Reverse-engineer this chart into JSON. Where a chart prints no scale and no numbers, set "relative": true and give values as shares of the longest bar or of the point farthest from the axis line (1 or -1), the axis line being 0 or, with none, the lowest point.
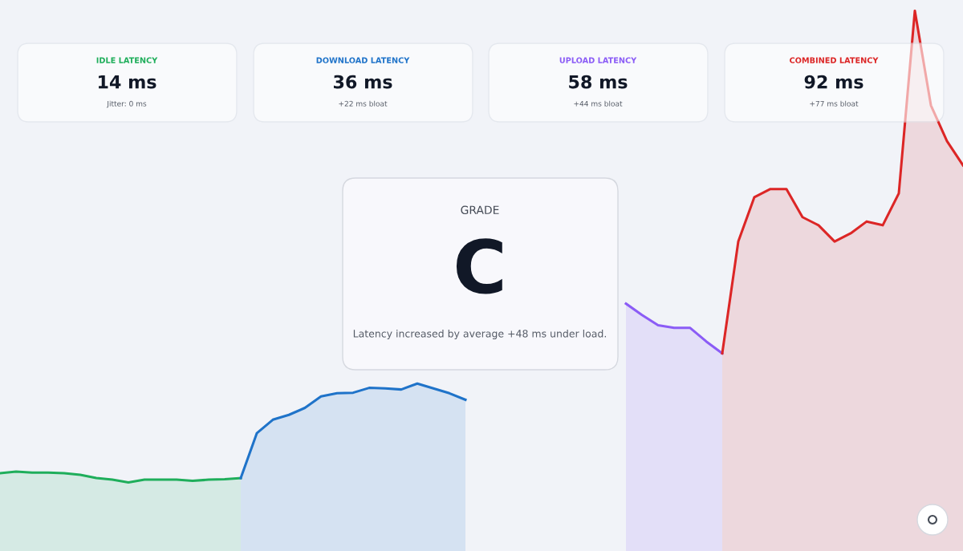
{
  "chart_data": [
    {
      "type": "area",
      "relative": true,
      "categories": [
        null,
        null,
        null,
        null,
        null,
        null,
        null,
        null,
        null,
        null,
        null,
        null,
        null,
        null,
        null,
        null,
        null,
        null,
        null,
        null,
        null,
        null,
        null,
        null,
        null,
        null,
        null,
        null,
        null,
        null,
        null,
        null,
        null,
        null,
        null,
        null,
        null,
        null,
        null,
        null,
        null,
        null,
        null,
        null,
        null,
        null,
        null,
        null,
        null,
        null,
        null,
        null,
        null,
        null,
        null,
        null,
        null,
        null,
        null,
        null,
        null
      ],
      "marker": "none",
      "line_style": "solid",
      "series": [
        {
          "color": "#1fae5b",
          "values": [
            0.144,
            0.147,
            0.145,
            0.145,
            0.144,
            0.141,
            0.135,
            0.132,
            0.127,
            0.132,
            0.132,
            0.132,
            0.13,
            0.132,
            0.133,
            0.135,
            null,
            null,
            null,
            null,
            null,
            null,
            null,
            null,
            null,
            null,
            null,
            null,
            null,
            null,
            null,
            null,
            null,
            null,
            null,
            null,
            null,
            null,
            null,
            null,
            null,
            null,
            null,
            null,
            null,
            null,
            null,
            null,
            null,
            null,
            null,
            null,
            null,
            null,
            null,
            null,
            null,
            null,
            null,
            null,
            null
          ]
        },
        {
          "color": "#1f73c9",
          "values": [
            null,
            null,
            null,
            null,
            null,
            null,
            null,
            null,
            null,
            null,
            null,
            null,
            null,
            null,
            null,
            0.135,
            0.218,
            0.243,
            0.252,
            0.265,
            0.286,
            0.292,
            0.293,
            0.302,
            0.301,
            0.299,
            0.31,
            0.301,
            0.292,
            0.28,
            null,
            null,
            null,
            null,
            null,
            null,
            null,
            null,
            null,
            null,
            null,
            null,
            null,
            null,
            null,
            null,
            null,
            null,
            null,
            null,
            null,
            null,
            null,
            null,
            null,
            null,
            null,
            null,
            null,
            null,
            null
          ]
        },
        {
          "color": "#8b5cf6",
          "values": [
            null,
            null,
            null,
            null,
            null,
            null,
            null,
            null,
            null,
            null,
            null,
            null,
            null,
            null,
            null,
            null,
            null,
            null,
            null,
            null,
            null,
            null,
            null,
            null,
            null,
            null,
            null,
            null,
            null,
            null,
            null,
            null,
            null,
            null,
            null,
            null,
            null,
            null,
            null,
            0.458,
            0.437,
            0.418,
            0.413,
            0.413,
            0.388,
            0.366,
            null,
            null,
            null,
            null,
            null,
            null,
            null,
            null,
            null,
            null,
            null,
            null,
            null,
            null,
            null
          ]
        },
        {
          "color": "#dc2626",
          "values": [
            null,
            null,
            null,
            null,
            null,
            null,
            null,
            null,
            null,
            null,
            null,
            null,
            null,
            null,
            null,
            null,
            null,
            null,
            null,
            null,
            null,
            null,
            null,
            null,
            null,
            null,
            null,
            null,
            null,
            null,
            null,
            null,
            null,
            null,
            null,
            null,
            null,
            null,
            null,
            null,
            null,
            null,
            null,
            null,
            null,
            0.366,
            0.573,
            0.655,
            0.67,
            0.67,
            0.618,
            0.603,
            0.573,
            0.588,
            0.61,
            0.603,
            0.662,
            1.0,
            0.825,
            0.759,
            0.714
          ]
        }
      ]
    },
    {
      "type": "other",
      "annotations": [
        "IDLE LATENCY",
        "14 ms",
        "Jitter: 0 ms",
        "DOWNLOAD LATENCY",
        "36 ms",
        "+22 ms bloat",
        "UPLOAD LATENCY",
        "58 ms",
        "+44 ms bloat",
        "COMBINED LATENCY",
        "92 ms",
        "+77 ms bloat",
        "GRADE",
        "C",
        "Latency increased by average +48 ms under load."
      ]
    }
  ]
}
